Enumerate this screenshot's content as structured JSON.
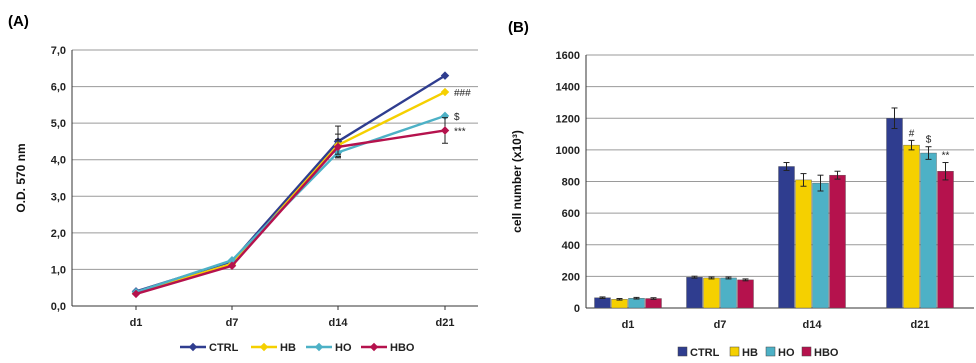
{
  "figure": {
    "panel_a_label": "(A)",
    "panel_b_label": "(B)"
  },
  "colors": {
    "CTRL": "#2f3d8f",
    "HB": "#f5d000",
    "HO": "#4db1c6",
    "HBO": "#b5124d",
    "grid": "#9a9a9a",
    "axis": "#333333",
    "errorbar": "#222222"
  },
  "chart_data": [
    {
      "panel": "A",
      "type": "line",
      "title": "",
      "xlabel": "",
      "ylabel": "O.D. 570 nm",
      "categories": [
        "d1",
        "d7",
        "d14",
        "d21"
      ],
      "ylim": [
        0,
        7
      ],
      "yticks": [
        "0,0",
        "1,0",
        "2,0",
        "3,0",
        "4,0",
        "5,0",
        "6,0",
        "7,0"
      ],
      "grid": true,
      "legend": "bottom",
      "series": [
        {
          "name": "CTRL",
          "values": [
            0.4,
            1.22,
            4.5,
            6.3
          ],
          "err": [
            0.03,
            0.05,
            0.42,
            0.05
          ]
        },
        {
          "name": "HB",
          "values": [
            0.35,
            1.15,
            4.4,
            5.85
          ],
          "err": [
            0.03,
            0.05,
            0.3,
            0.06
          ]
        },
        {
          "name": "HO",
          "values": [
            0.38,
            1.25,
            4.2,
            5.2
          ],
          "err": [
            0.03,
            0.05,
            0.15,
            0.08
          ]
        },
        {
          "name": "HBO",
          "values": [
            0.33,
            1.1,
            4.35,
            4.8
          ],
          "err": [
            0.03,
            0.05,
            0.2,
            0.35
          ]
        }
      ],
      "annotations": [
        {
          "series": "HB",
          "category": "d21",
          "text": "###"
        },
        {
          "series": "HO",
          "category": "d21",
          "text": "$"
        },
        {
          "series": "HBO",
          "category": "d21",
          "text": "***"
        }
      ]
    },
    {
      "panel": "B",
      "type": "bar",
      "title": "",
      "xlabel": "",
      "ylabel": "cell number (x10³)",
      "categories": [
        "d1",
        "d7",
        "d14",
        "d21"
      ],
      "ylim": [
        0,
        1600
      ],
      "yticks": [
        "0",
        "200",
        "400",
        "600",
        "800",
        "1000",
        "1200",
        "1400",
        "1600"
      ],
      "grid": true,
      "legend": "bottom",
      "series": [
        {
          "name": "CTRL",
          "values": [
            65,
            195,
            895,
            1200
          ],
          "err": [
            5,
            6,
            25,
            65
          ]
        },
        {
          "name": "HB",
          "values": [
            55,
            190,
            810,
            1030
          ],
          "err": [
            5,
            6,
            40,
            30
          ]
        },
        {
          "name": "HO",
          "values": [
            62,
            190,
            790,
            980
          ],
          "err": [
            5,
            6,
            50,
            40
          ]
        },
        {
          "name": "HBO",
          "values": [
            60,
            178,
            840,
            865
          ],
          "err": [
            5,
            6,
            25,
            55
          ]
        }
      ],
      "annotations": [
        {
          "series": "HB",
          "category": "d21",
          "text": "#"
        },
        {
          "series": "HO",
          "category": "d21",
          "text": "$"
        },
        {
          "series": "HBO",
          "category": "d21",
          "text": "**"
        }
      ]
    }
  ]
}
